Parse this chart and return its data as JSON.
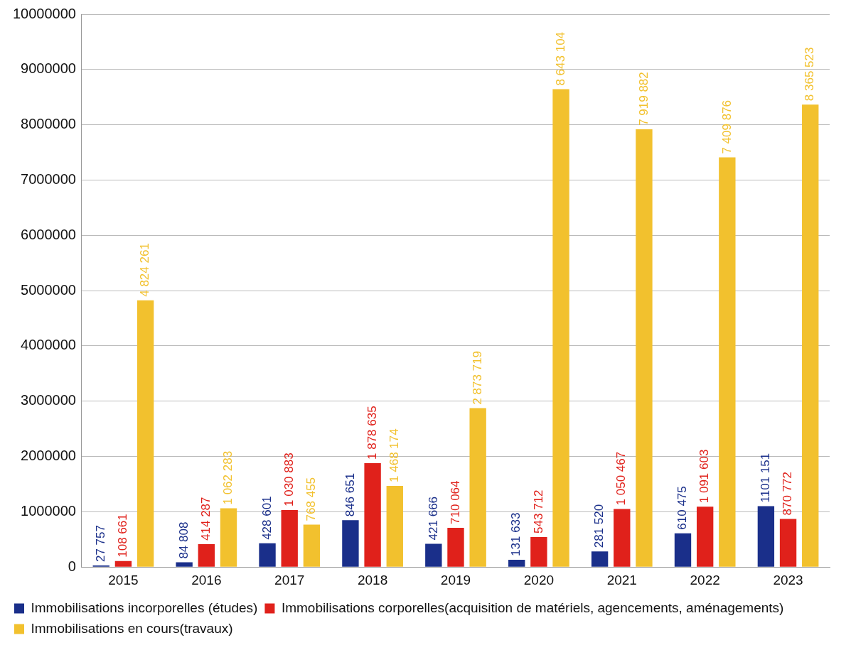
{
  "chart_data": {
    "type": "bar",
    "categories": [
      "2015",
      "2016",
      "2017",
      "2018",
      "2019",
      "2020",
      "2021",
      "2022",
      "2023"
    ],
    "ylim": [
      0,
      10000000
    ],
    "yticks": [
      0,
      1000000,
      2000000,
      3000000,
      4000000,
      5000000,
      6000000,
      7000000,
      8000000,
      9000000,
      10000000
    ],
    "grid": "y",
    "legend": "bottom",
    "series": [
      {
        "name": "Immobilisations incorporelles (études)",
        "color": "#1a2f8a",
        "values": [
          27757,
          84808,
          428601,
          846651,
          421666,
          131633,
          281520,
          610475,
          1101151
        ],
        "value_labels": [
          "27 757",
          "84 808",
          "428 601",
          "846 651",
          "421 666",
          "131 633",
          "281 520",
          "610 475",
          "1101 151"
        ]
      },
      {
        "name": "Immobilisations corporelles(acquisition de matériels, agencements, aménagements)",
        "color": "#e0211b",
        "values": [
          108661,
          414287,
          1030883,
          1878635,
          710064,
          543712,
          1050467,
          1091603,
          870772
        ],
        "value_labels": [
          "108 661",
          "414 287",
          "1 030 883",
          "1 878 635",
          "710 064",
          "543 712",
          "1 050 467",
          "1 091 603",
          "870 772"
        ]
      },
      {
        "name": "Immobilisations en cours(travaux)",
        "color": "#f2c12e",
        "values": [
          4824261,
          1062283,
          768455,
          1468174,
          2873719,
          8643104,
          7919882,
          7409876,
          8365523
        ],
        "value_labels": [
          "4 824 261",
          "1 062 283",
          "768 455",
          "1 468 174",
          "2 873 719",
          "8 643 104",
          "7 919 882",
          "7 409 876",
          "8 365 523"
        ]
      }
    ]
  }
}
